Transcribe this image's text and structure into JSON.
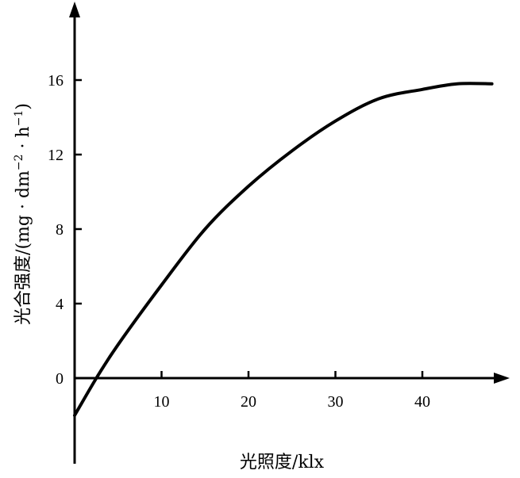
{
  "chart_data": {
    "type": "line",
    "xlabel": "光照度/klx",
    "ylabel_parts": {
      "main": "光合强度/(mg · dm",
      "exp1": "−2",
      "mid": " · h",
      "exp2": "−1",
      "end": ")"
    },
    "xlim": [
      0,
      50
    ],
    "ylim": [
      -5,
      20
    ],
    "x_ticks": [
      10,
      20,
      30,
      40
    ],
    "y_ticks": [
      0,
      4,
      8,
      12,
      16
    ],
    "grid": false,
    "series": [
      {
        "x": [
          0,
          2.5,
          5,
          10,
          15,
          20,
          25,
          30,
          35,
          40,
          44,
          48
        ],
        "y": [
          -2,
          0,
          1.8,
          5,
          8,
          10.3,
          12.2,
          13.8,
          15,
          15.5,
          15.8,
          15.8
        ]
      }
    ]
  }
}
